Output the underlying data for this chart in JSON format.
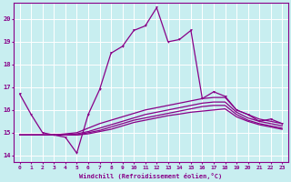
{
  "xlabel": "Windchill (Refroidissement éolien,°C)",
  "bg_color": "#c8eef0",
  "line_color": "#880088",
  "grid_color": "#ffffff",
  "xlim": [
    -0.5,
    23.5
  ],
  "ylim": [
    13.7,
    20.7
  ],
  "yticks": [
    14,
    15,
    16,
    17,
    18,
    19,
    20
  ],
  "xticks": [
    0,
    1,
    2,
    3,
    4,
    5,
    6,
    7,
    8,
    9,
    10,
    11,
    12,
    13,
    14,
    15,
    16,
    17,
    18,
    19,
    20,
    21,
    22,
    23
  ],
  "series": [
    [
      16.7,
      15.8,
      15.0,
      14.9,
      14.8,
      14.1,
      15.8,
      16.9,
      18.5,
      18.8,
      19.5,
      19.7,
      20.5,
      19.0,
      19.1,
      19.5,
      16.5,
      16.8,
      16.6,
      16.0,
      15.8,
      15.5,
      15.6,
      15.4
    ],
    [
      14.9,
      14.9,
      14.9,
      14.9,
      14.95,
      15.0,
      15.2,
      15.4,
      15.55,
      15.7,
      15.85,
      16.0,
      16.1,
      16.2,
      16.3,
      16.4,
      16.5,
      16.55,
      16.55,
      16.0,
      15.8,
      15.6,
      15.5,
      15.4
    ],
    [
      14.9,
      14.9,
      14.9,
      14.9,
      14.9,
      14.95,
      15.05,
      15.2,
      15.35,
      15.5,
      15.65,
      15.8,
      15.9,
      16.0,
      16.1,
      16.2,
      16.3,
      16.35,
      16.35,
      15.9,
      15.65,
      15.5,
      15.4,
      15.3
    ],
    [
      14.9,
      14.9,
      14.9,
      14.9,
      14.9,
      14.9,
      15.0,
      15.1,
      15.25,
      15.4,
      15.55,
      15.65,
      15.75,
      15.85,
      15.95,
      16.05,
      16.15,
      16.2,
      16.2,
      15.8,
      15.55,
      15.4,
      15.3,
      15.2
    ],
    [
      14.9,
      14.9,
      14.9,
      14.9,
      14.9,
      14.9,
      14.95,
      15.05,
      15.15,
      15.3,
      15.45,
      15.55,
      15.65,
      15.75,
      15.82,
      15.9,
      15.95,
      16.0,
      16.05,
      15.7,
      15.5,
      15.35,
      15.25,
      15.15
    ]
  ],
  "marker_series": 0,
  "marker": "v"
}
